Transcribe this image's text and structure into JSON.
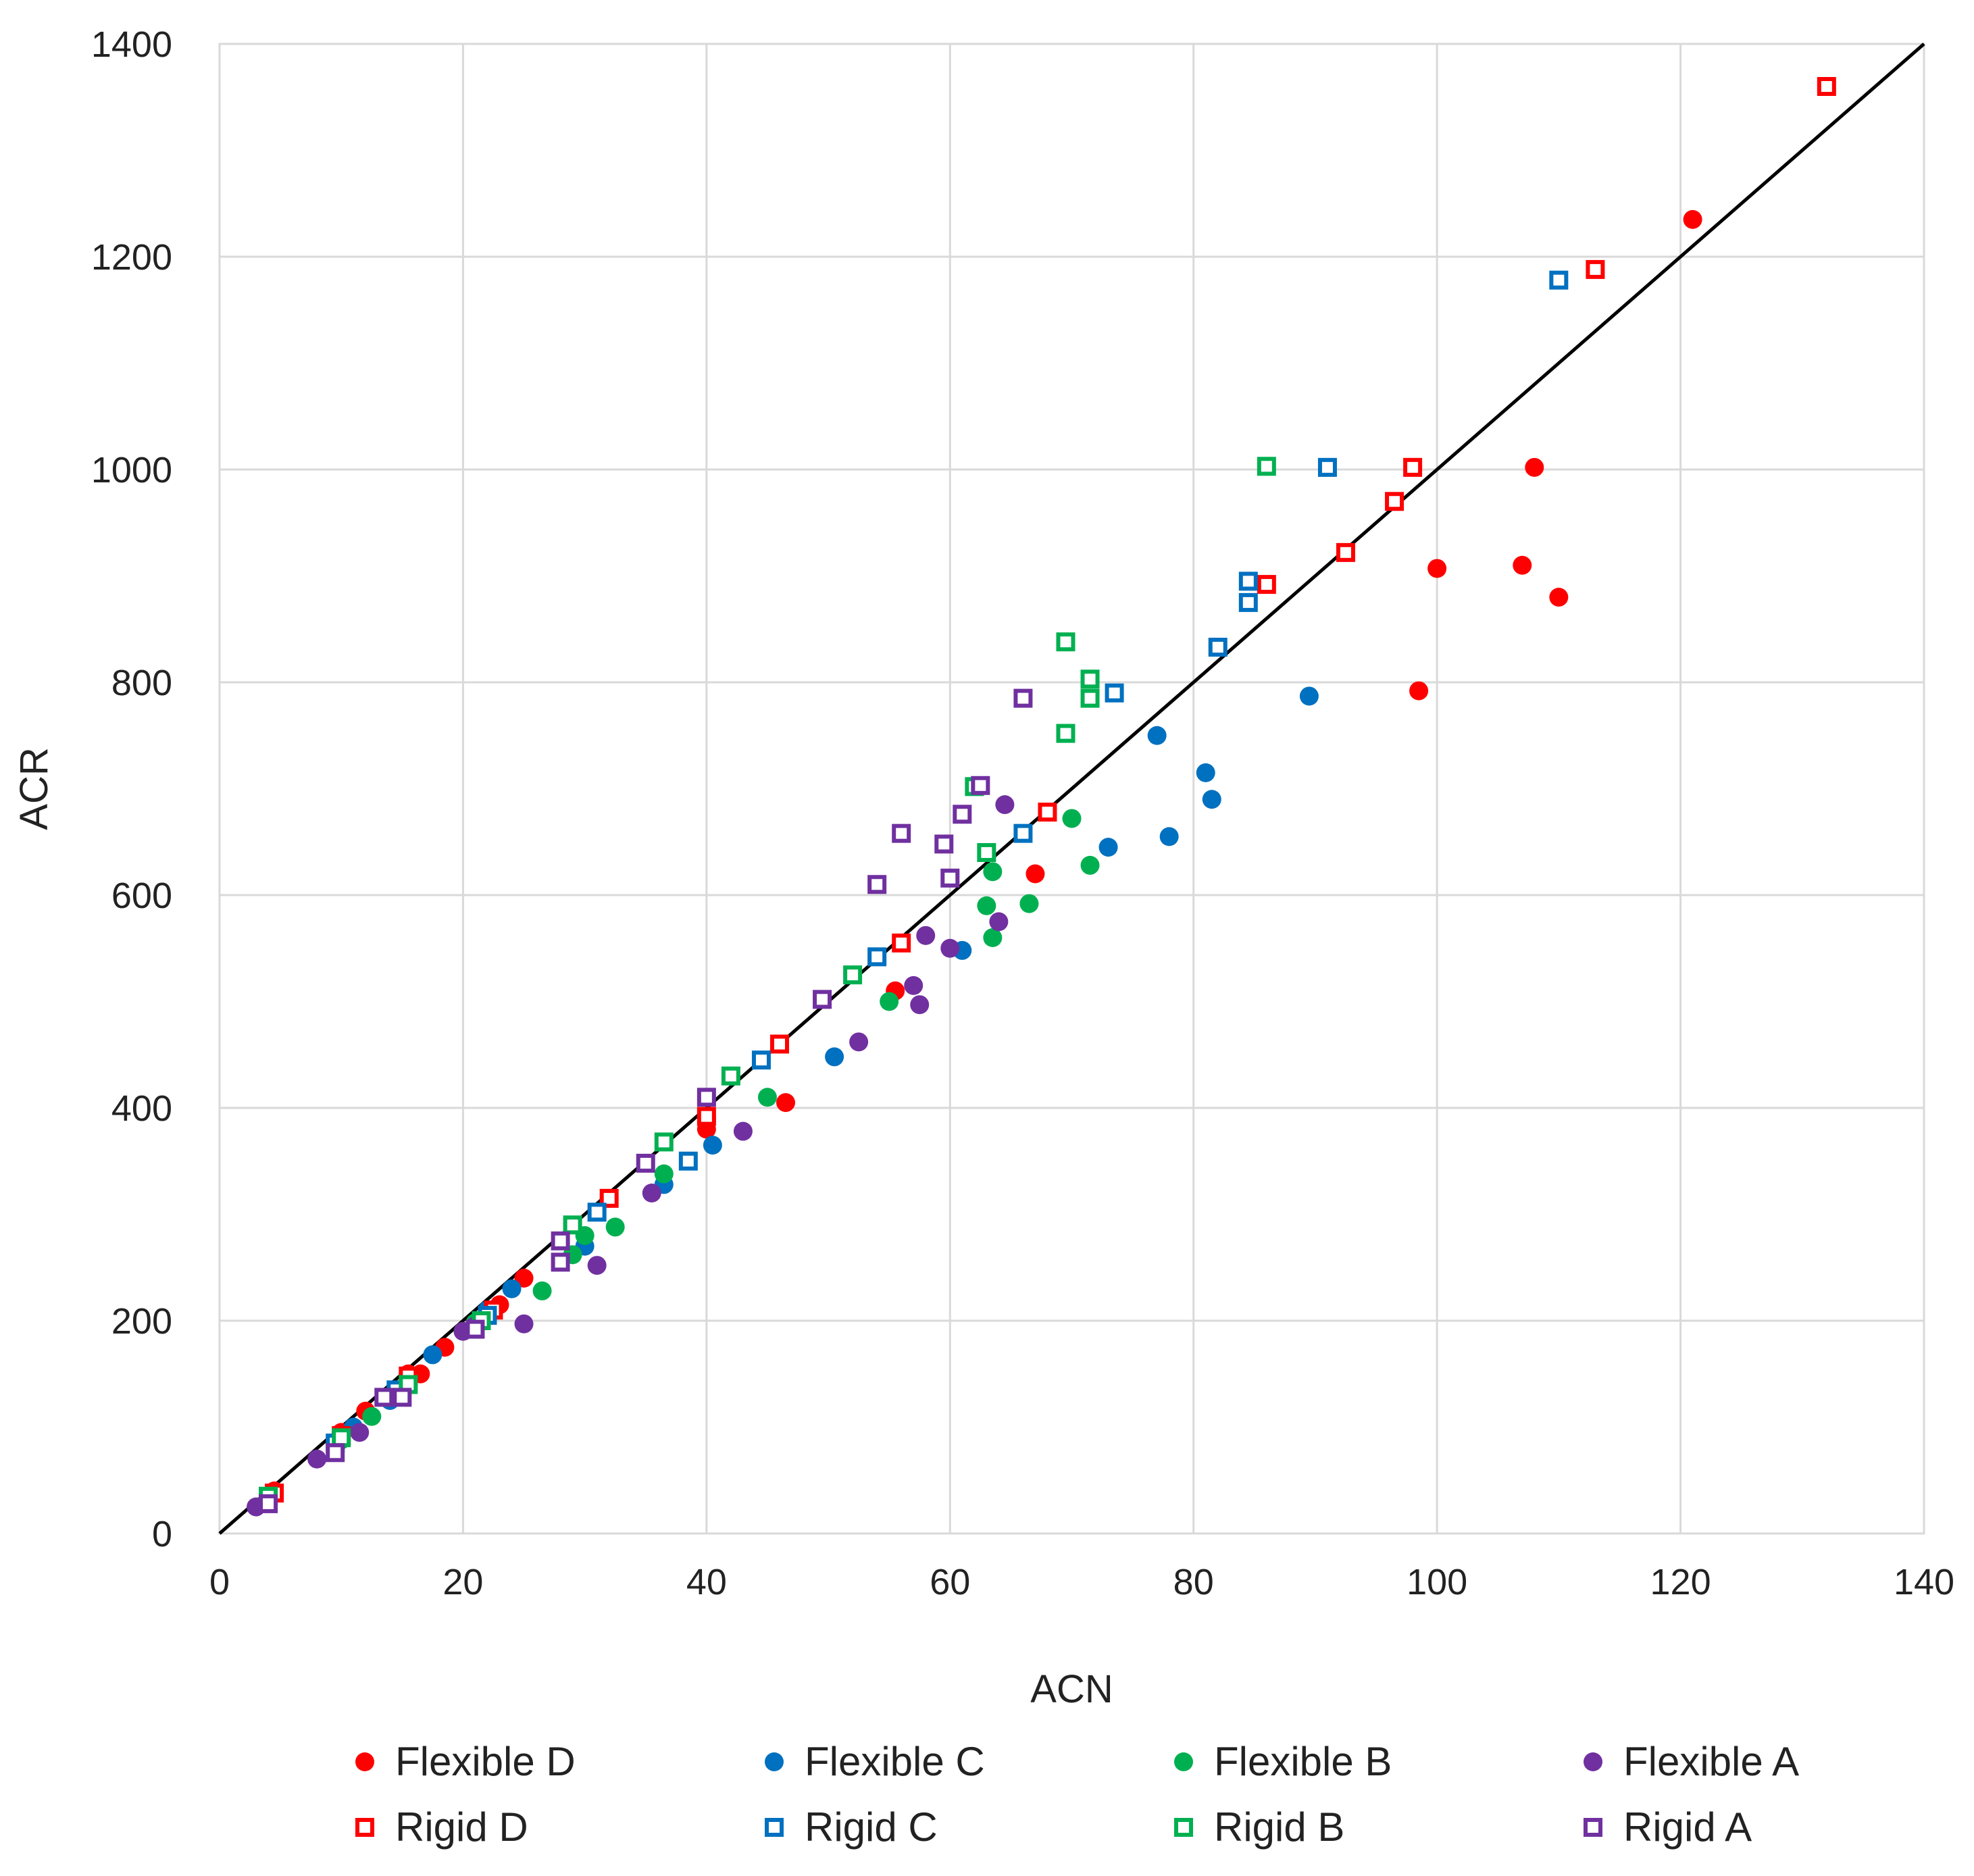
{
  "chart_data": {
    "type": "scatter",
    "title": "",
    "xlabel": "ACN",
    "ylabel": "ACR",
    "xlim": [
      0,
      140
    ],
    "ylim": [
      0,
      1400
    ],
    "xticks": [
      "0",
      "20",
      "40",
      "60",
      "80",
      "100",
      "120",
      "140"
    ],
    "yticks": [
      "0",
      "200",
      "400",
      "600",
      "800",
      "1000",
      "1200",
      "1400"
    ],
    "xtick_values": [
      0,
      20,
      40,
      60,
      80,
      100,
      120,
      140
    ],
    "ytick_values": [
      0,
      200,
      400,
      600,
      800,
      1000,
      1200,
      1400
    ],
    "grid": true,
    "legend_position": "bottom",
    "reference_line": {
      "x": [
        0,
        140
      ],
      "y": [
        0,
        1400
      ],
      "color": "#000000"
    },
    "series": [
      {
        "name": "Flexible D",
        "marker": "circle",
        "color": "#ff0000",
        "points": [
          [
            4.5,
            40
          ],
          [
            10,
            95
          ],
          [
            12,
            115
          ],
          [
            15.5,
            150
          ],
          [
            16.5,
            150
          ],
          [
            18.5,
            175
          ],
          [
            23,
            215
          ],
          [
            25,
            240
          ],
          [
            32,
            315
          ],
          [
            40,
            380
          ],
          [
            40,
            390
          ],
          [
            46.5,
            405
          ],
          [
            55.5,
            510
          ],
          [
            67,
            620
          ],
          [
            98.5,
            792
          ],
          [
            100,
            907
          ],
          [
            107,
            910
          ],
          [
            108,
            1002
          ],
          [
            110,
            880
          ],
          [
            121,
            1235
          ]
        ]
      },
      {
        "name": "Flexible C",
        "marker": "circle",
        "color": "#0070c0",
        "points": [
          [
            4,
            35
          ],
          [
            9.5,
            85
          ],
          [
            11,
            100
          ],
          [
            14,
            125
          ],
          [
            17.5,
            168
          ],
          [
            22,
            210
          ],
          [
            24,
            230
          ],
          [
            30,
            270
          ],
          [
            36.5,
            328
          ],
          [
            40.5,
            365
          ],
          [
            50.5,
            448
          ],
          [
            61,
            548
          ],
          [
            73,
            645
          ],
          [
            77,
            750
          ],
          [
            78,
            655
          ],
          [
            81,
            715
          ],
          [
            81.5,
            690
          ],
          [
            89.5,
            787
          ]
        ]
      },
      {
        "name": "Flexible B",
        "marker": "circle",
        "color": "#00b050",
        "points": [
          [
            4,
            35
          ],
          [
            10,
            88
          ],
          [
            12.5,
            110
          ],
          [
            15.5,
            140
          ],
          [
            21,
            198
          ],
          [
            26.5,
            228
          ],
          [
            29,
            262
          ],
          [
            30,
            280
          ],
          [
            32.5,
            288
          ],
          [
            36.5,
            338
          ],
          [
            45,
            410
          ],
          [
            55,
            500
          ],
          [
            63,
            590
          ],
          [
            63.5,
            560
          ],
          [
            63.5,
            622
          ],
          [
            66.5,
            592
          ],
          [
            70,
            672
          ],
          [
            71.5,
            628
          ]
        ]
      },
      {
        "name": "Flexible A",
        "marker": "circle",
        "color": "#7030a0",
        "points": [
          [
            3,
            25
          ],
          [
            8,
            70
          ],
          [
            11.5,
            95
          ],
          [
            14.5,
            130
          ],
          [
            20,
            190
          ],
          [
            21,
            195
          ],
          [
            25,
            197
          ],
          [
            31,
            252
          ],
          [
            35.5,
            320
          ],
          [
            43,
            378
          ],
          [
            52.5,
            462
          ],
          [
            57,
            515
          ],
          [
            57.5,
            497
          ],
          [
            58,
            562
          ],
          [
            60,
            550
          ],
          [
            64,
            575
          ],
          [
            64.5,
            685
          ]
        ]
      },
      {
        "name": "Rigid D",
        "marker": "square",
        "color": "#ff0000",
        "points": [
          [
            4.5,
            38
          ],
          [
            10,
            92
          ],
          [
            15.5,
            148
          ],
          [
            22.5,
            210
          ],
          [
            32,
            315
          ],
          [
            40,
            392
          ],
          [
            46,
            460
          ],
          [
            56,
            555
          ],
          [
            68,
            678
          ],
          [
            86,
            892
          ],
          [
            92.5,
            922
          ],
          [
            96.5,
            970
          ],
          [
            98,
            1002
          ],
          [
            113,
            1188
          ],
          [
            132,
            1360
          ]
        ]
      },
      {
        "name": "Rigid C",
        "marker": "square",
        "color": "#0070c0",
        "points": [
          [
            4,
            35
          ],
          [
            9.5,
            85
          ],
          [
            14.5,
            135
          ],
          [
            22,
            205
          ],
          [
            31,
            302
          ],
          [
            38.5,
            350
          ],
          [
            44.5,
            445
          ],
          [
            54,
            542
          ],
          [
            66,
            658
          ],
          [
            73.5,
            790
          ],
          [
            82,
            833
          ],
          [
            84.5,
            875
          ],
          [
            84.5,
            895
          ],
          [
            91,
            1002
          ],
          [
            110,
            1178
          ]
        ]
      },
      {
        "name": "Rigid B",
        "marker": "square",
        "color": "#00b050",
        "points": [
          [
            4,
            35
          ],
          [
            10,
            90
          ],
          [
            15.5,
            140
          ],
          [
            21.5,
            200
          ],
          [
            29,
            290
          ],
          [
            36.5,
            368
          ],
          [
            42,
            430
          ],
          [
            52,
            525
          ],
          [
            62,
            702
          ],
          [
            63,
            640
          ],
          [
            69.5,
            752
          ],
          [
            69.5,
            838
          ],
          [
            71.5,
            785
          ],
          [
            71.5,
            803
          ],
          [
            86,
            1003
          ]
        ]
      },
      {
        "name": "Rigid A",
        "marker": "square",
        "color": "#7030a0",
        "points": [
          [
            4,
            28
          ],
          [
            9.5,
            76
          ],
          [
            13.5,
            128
          ],
          [
            15,
            128
          ],
          [
            21,
            192
          ],
          [
            28,
            255
          ],
          [
            28,
            275
          ],
          [
            35,
            348
          ],
          [
            40,
            410
          ],
          [
            49.5,
            502
          ],
          [
            54,
            610
          ],
          [
            56,
            658
          ],
          [
            59.5,
            648
          ],
          [
            60,
            616
          ],
          [
            61,
            676
          ],
          [
            62.5,
            703
          ],
          [
            66,
            785
          ]
        ]
      }
    ]
  }
}
